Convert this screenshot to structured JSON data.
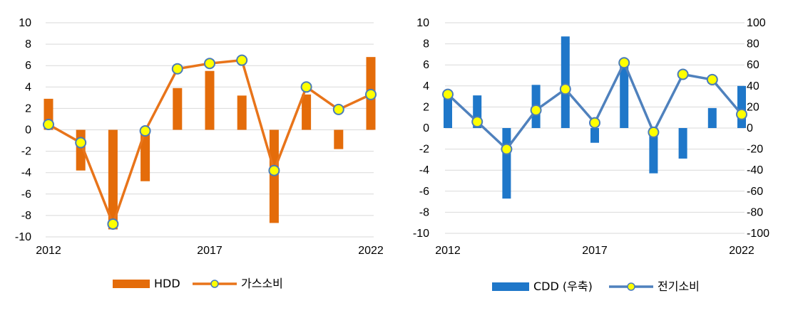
{
  "chart_data": [
    {
      "type": "bar",
      "x": [
        2012,
        2013,
        2014,
        2015,
        2016,
        2017,
        2018,
        2019,
        2020,
        2021,
        2022
      ],
      "xticks": [
        "2012",
        "2017",
        "2022"
      ],
      "ylim": [
        -10,
        10
      ],
      "yticks": [
        "10",
        "8",
        "6",
        "4",
        "2",
        "0",
        "-2",
        "-4",
        "-6",
        "-8",
        "-10"
      ],
      "grid": true,
      "legend_position": "bottom",
      "series": [
        {
          "name": "HDD",
          "type": "bar",
          "color": "#E46C0A",
          "values": [
            2.9,
            -3.8,
            -9.3,
            -4.8,
            3.9,
            5.5,
            3.2,
            -8.7,
            3.3,
            -1.8,
            6.8
          ]
        },
        {
          "name": "가스소비",
          "type": "line",
          "color": "#E8741A",
          "marker_color": "#FFFF00",
          "marker_edge": "#4A7CB8",
          "values": [
            0.5,
            -1.2,
            -8.8,
            -0.1,
            5.7,
            6.2,
            6.5,
            -3.8,
            4.0,
            1.9,
            3.3
          ]
        }
      ]
    },
    {
      "type": "bar",
      "x": [
        2012,
        2013,
        2014,
        2015,
        2016,
        2017,
        2018,
        2019,
        2020,
        2021,
        2022
      ],
      "xticks": [
        "2012",
        "2017",
        "2022"
      ],
      "ylim": [
        -10,
        10
      ],
      "y2lim": [
        -100,
        100
      ],
      "yticks": [
        "10",
        "8",
        "6",
        "4",
        "2",
        "0",
        "-2",
        "-4",
        "-6",
        "-8",
        "-10"
      ],
      "y2ticks": [
        "100",
        "80",
        "60",
        "40",
        "20",
        "0",
        "-20",
        "-40",
        "-60",
        "-80",
        "-100"
      ],
      "grid": true,
      "legend_position": "bottom",
      "series": [
        {
          "name": "CDD (우축)",
          "type": "bar",
          "axis": "right",
          "color": "#1F77C9",
          "values": [
            34,
            31,
            -67,
            41,
            87,
            -14,
            65,
            -43,
            -29,
            19,
            40
          ]
        },
        {
          "name": "전기소비",
          "type": "line",
          "axis": "left",
          "color": "#4F81BD",
          "marker_color": "#FFFF00",
          "marker_edge": "#4A7CB8",
          "values": [
            3.2,
            0.6,
            -2.0,
            1.7,
            3.7,
            0.5,
            6.2,
            -0.4,
            5.1,
            4.6,
            1.3
          ]
        }
      ]
    }
  ]
}
